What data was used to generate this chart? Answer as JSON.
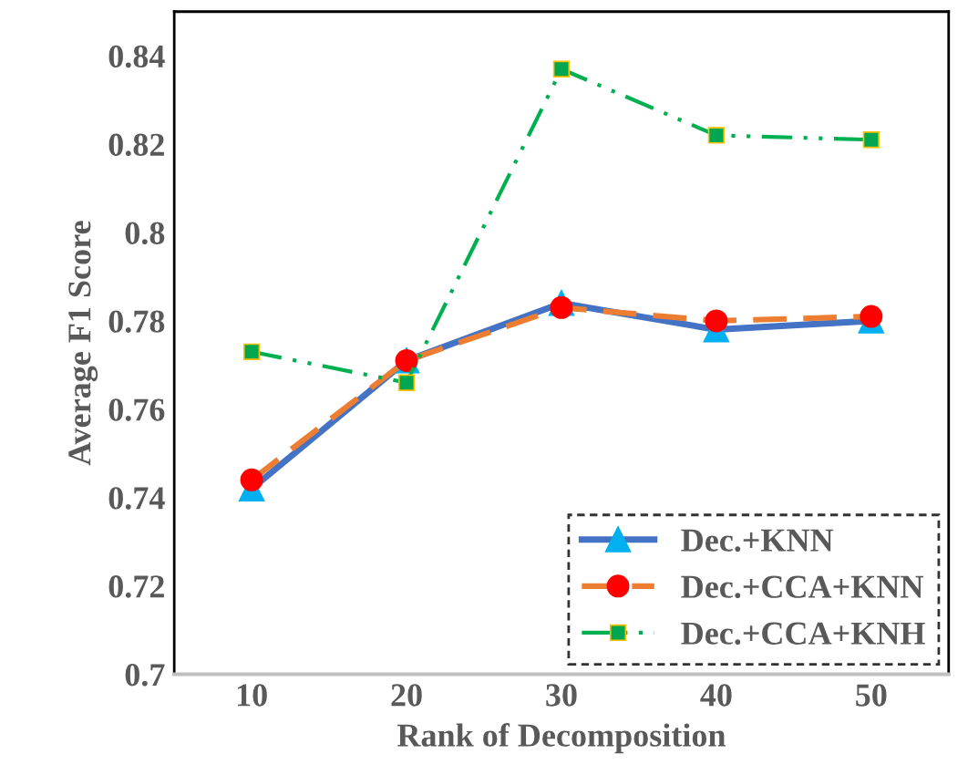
{
  "chart_data": {
    "type": "line",
    "xlabel": "Rank of Decomposition",
    "ylabel": "Average F1 Score",
    "categories": [
      "10",
      "20",
      "30",
      "40",
      "50"
    ],
    "series": [
      {
        "name": "Dec.+KNN",
        "color": "#4472c4",
        "values": [
          0.742,
          0.771,
          0.784,
          0.778,
          0.78
        ],
        "marker": "triangle",
        "line_style": "solid"
      },
      {
        "name": "Dec.+CCA+KNN",
        "color": "#ed7d31",
        "values": [
          0.744,
          0.771,
          0.783,
          0.78,
          0.781
        ],
        "marker": "circle",
        "line_style": "dashed"
      },
      {
        "name": "Dec.+CCA+KNH",
        "color": "#00b050",
        "values": [
          0.773,
          0.766,
          0.837,
          0.822,
          0.821
        ],
        "marker": "square",
        "line_style": "dashdot"
      }
    ],
    "ylim": [
      0.7,
      0.85
    ],
    "yticks": [
      0.7,
      0.72,
      0.74,
      0.76,
      0.78,
      0.8,
      0.82,
      0.84
    ],
    "grid": false,
    "legend": "bottom right"
  }
}
